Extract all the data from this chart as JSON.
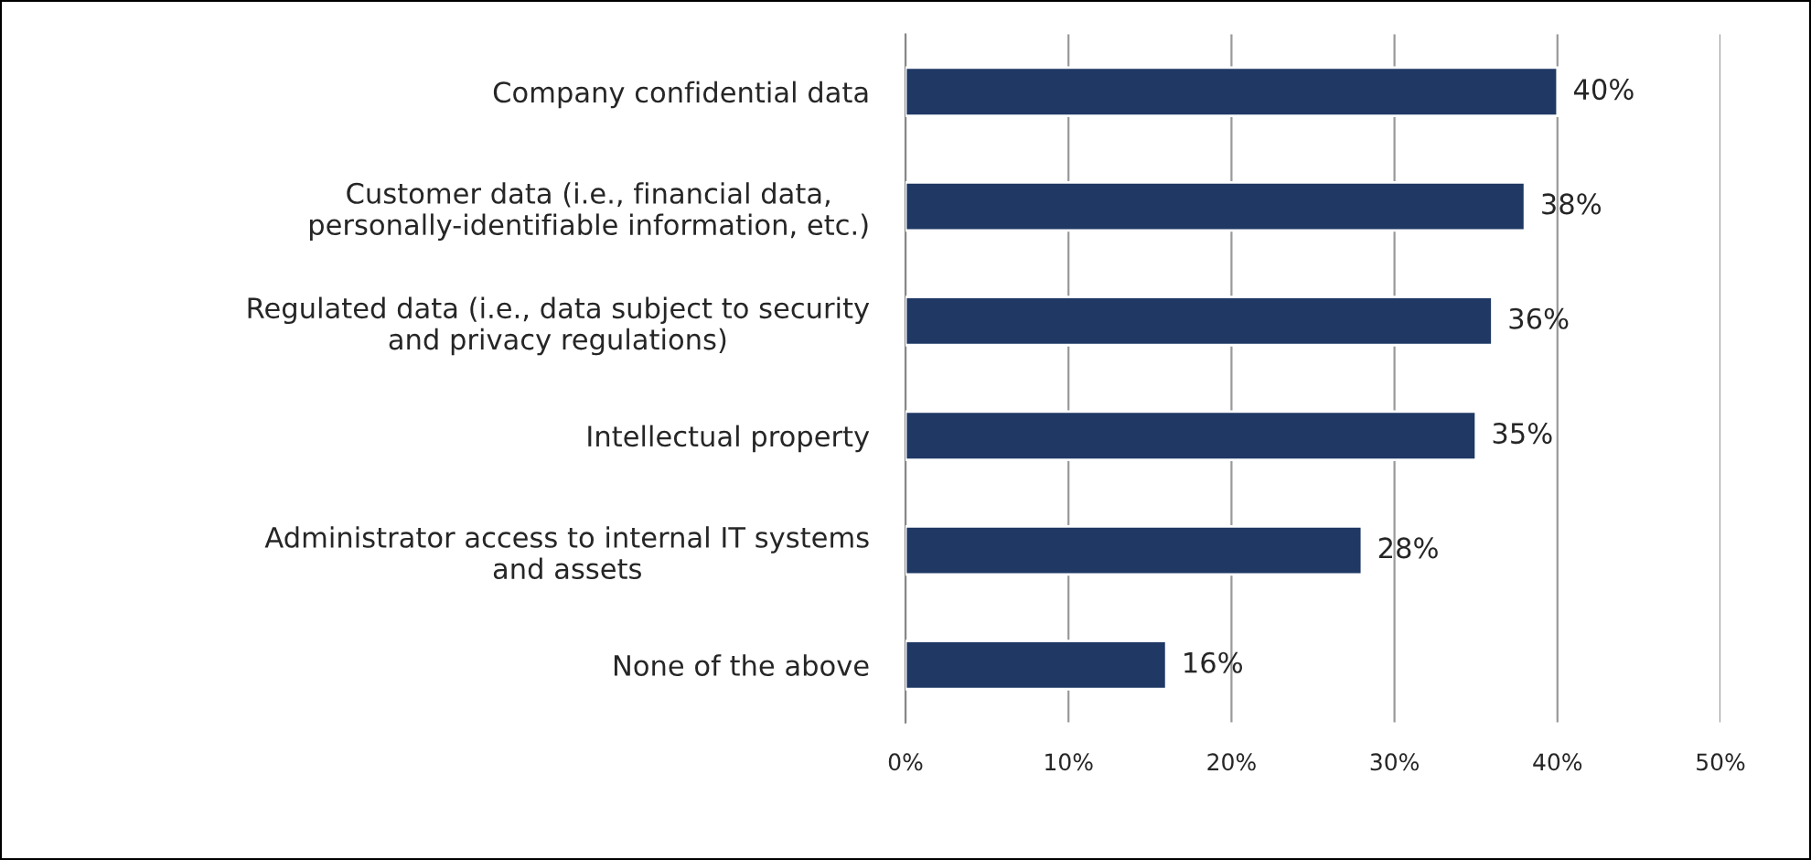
{
  "chart_data": {
    "type": "bar",
    "orientation": "horizontal",
    "categories": [
      "Company confidential data",
      "Customer data (i.e., financial data, personally-identifiable information, etc.)",
      "Regulated data (i.e., data subject to security and privacy regulations)",
      "Intellectual property",
      "Administrator access to internal IT systems and assets",
      "None of the above"
    ],
    "values": [
      40,
      38,
      36,
      35,
      28,
      16
    ],
    "value_labels": [
      "40%",
      "38%",
      "36%",
      "35%",
      "28%",
      "16%"
    ],
    "color": "#1f3864",
    "xlim": [
      0,
      50
    ],
    "xticks": [
      {
        "value": 0,
        "label": "0%"
      },
      {
        "value": 10,
        "label": "10%"
      },
      {
        "value": 20,
        "label": "20%"
      },
      {
        "value": 30,
        "label": "30%"
      },
      {
        "value": 40,
        "label": "40%"
      },
      {
        "value": 50,
        "label": "50%"
      }
    ],
    "grid": "x"
  }
}
